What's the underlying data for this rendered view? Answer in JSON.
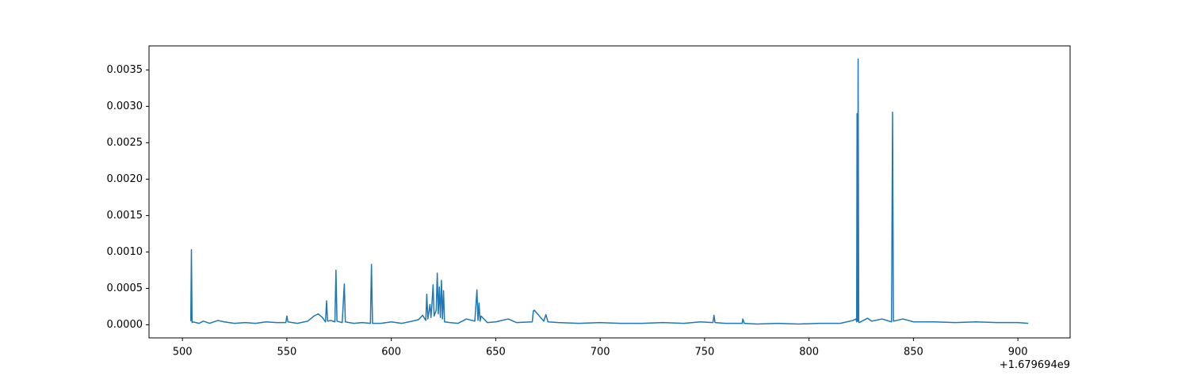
{
  "chart_data": {
    "type": "line",
    "color": "#1f77b4",
    "x_offset_label": "+1.679694e9",
    "x": [
      504,
      504.3,
      504.6,
      505,
      508,
      510,
      513,
      517,
      520,
      525,
      530,
      535,
      540,
      545,
      549.5,
      550,
      550.5,
      555,
      560,
      563,
      565,
      567,
      568.5,
      569,
      569.5,
      571,
      573,
      573.5,
      574,
      576.5,
      577.5,
      578,
      582,
      586,
      590,
      590.5,
      591,
      595,
      600,
      605,
      610,
      613,
      615,
      616.5,
      617,
      617.5,
      618.5,
      619,
      619.5,
      620,
      620.5,
      621.5,
      622,
      622.5,
      623,
      623.5,
      624,
      624.5,
      625,
      625.5,
      628,
      632,
      636,
      640,
      641,
      641.5,
      642,
      642.5,
      643,
      646,
      650,
      656,
      660,
      667.5,
      668,
      668.5,
      673,
      674,
      675,
      680,
      690,
      700,
      710,
      720,
      730,
      740,
      748,
      754,
      754.5,
      755,
      760,
      768,
      768.3,
      769,
      775,
      785,
      795,
      805,
      815,
      821,
      822.5,
      822.8,
      823,
      823.3,
      823.5,
      823.8,
      824,
      828,
      830,
      835,
      839.5,
      840,
      840.4,
      845,
      850,
      860,
      870,
      880,
      890,
      900,
      905
    ],
    "values": [
      5e-05,
      0.00103,
      3e-05,
      4e-05,
      2e-05,
      5e-05,
      2e-05,
      6e-05,
      4e-05,
      2e-05,
      3e-05,
      2e-05,
      4e-05,
      3e-05,
      3e-05,
      0.00012,
      4e-05,
      2e-05,
      5e-05,
      0.00012,
      0.00015,
      0.0001,
      4e-05,
      0.00033,
      5e-05,
      6e-05,
      4e-05,
      0.00075,
      5e-05,
      3e-05,
      0.00056,
      4e-05,
      2e-05,
      3e-05,
      2e-05,
      0.00083,
      2e-05,
      2e-05,
      4e-05,
      2e-05,
      5e-05,
      7e-05,
      0.00013,
      6e-05,
      0.00042,
      8e-05,
      0.00028,
      0.0001,
      0.0003,
      0.00055,
      0.00012,
      0.0002,
      0.00071,
      0.00015,
      0.00052,
      0.0001,
      0.00061,
      8e-05,
      0.00047,
      4e-05,
      3e-05,
      2e-05,
      8e-05,
      5e-05,
      0.00048,
      6e-05,
      0.0003,
      5e-05,
      0.00012,
      3e-05,
      4e-05,
      8e-05,
      3e-05,
      4e-05,
      0.00019,
      0.0002,
      5e-05,
      0.00014,
      4e-05,
      3e-05,
      2e-05,
      3e-05,
      2e-05,
      2e-05,
      3e-05,
      2e-05,
      4e-05,
      3e-05,
      0.00013,
      3e-05,
      2e-05,
      2e-05,
      8e-05,
      2e-05,
      1e-05,
      2e-05,
      1e-05,
      2e-05,
      2e-05,
      6e-05,
      8e-05,
      4e-05,
      0.0029,
      5e-05,
      0.00365,
      4e-05,
      3e-05,
      9e-05,
      5e-05,
      8e-05,
      4e-05,
      0.00292,
      5e-05,
      8e-05,
      4e-05,
      4e-05,
      3e-05,
      4e-05,
      3e-05,
      3e-05,
      2e-05
    ],
    "xlim": [
      484,
      925
    ],
    "xticks": [
      500,
      550,
      600,
      650,
      700,
      750,
      800,
      850,
      900
    ],
    "ylim": [
      -0.00018,
      0.00383
    ],
    "yticks": [
      {
        "value": 0,
        "label": "0.0000"
      },
      0.0005,
      {
        "value": 0.001,
        "label": "0.0010"
      },
      0.0015,
      {
        "value": 0.002,
        "label": "0.0020"
      },
      0.0025,
      {
        "value": 0.003,
        "label": "0.0030"
      },
      0.0035
    ]
  }
}
